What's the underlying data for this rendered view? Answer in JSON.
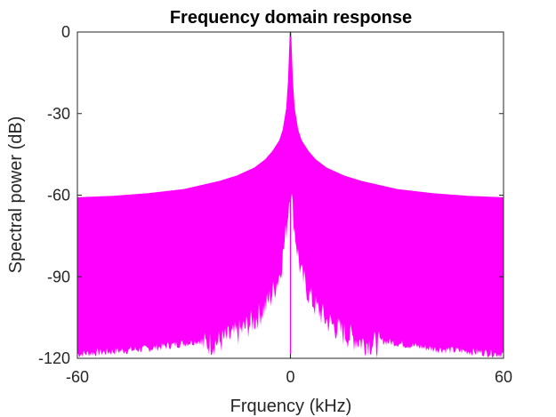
{
  "chart_data": {
    "type": "line",
    "title": "Frequency domain response",
    "xlabel": "Frquency (kHz)",
    "ylabel": "Spectral power (dB)",
    "xlim": [
      -60,
      60
    ],
    "ylim": [
      -120,
      0
    ],
    "xticks": [
      {
        "value": -60,
        "label": "-60"
      },
      {
        "value": 0,
        "label": "0"
      },
      {
        "value": 60,
        "label": "60"
      }
    ],
    "yticks": [
      {
        "value": 0,
        "label": "0"
      },
      {
        "value": -30,
        "label": "-30"
      },
      {
        "value": -60,
        "label": "-60"
      },
      {
        "value": -90,
        "label": "-90"
      },
      {
        "value": -120,
        "label": "-120"
      }
    ],
    "grid": false,
    "color": "#ff00ff",
    "series": [
      {
        "kind": "upper-envelope",
        "x": [
          -60,
          -50,
          -40,
          -30,
          -20,
          -15,
          -10,
          -7,
          -5,
          -3,
          -2,
          -1,
          -0.5,
          0,
          0.5,
          1,
          2,
          3,
          5,
          7,
          10,
          15,
          20,
          30,
          40,
          50,
          60
        ],
        "values": [
          -61,
          -60.5,
          -59.5,
          -58,
          -55,
          -53,
          -50,
          -47,
          -44,
          -40,
          -36,
          -28,
          -18,
          0,
          -18,
          -28,
          -36,
          -40,
          -44,
          -47,
          -50,
          -53,
          -55,
          -58,
          -59.5,
          -60.5,
          -61
        ]
      },
      {
        "kind": "lower-envelope",
        "x": [
          -60,
          -50,
          -40,
          -30,
          -20,
          -15,
          -10,
          -7,
          -5,
          -3,
          -2,
          -1,
          0,
          1,
          2,
          3,
          5,
          7,
          10,
          15,
          20,
          30,
          40,
          50,
          60
        ],
        "values": [
          -119,
          -118,
          -117,
          -115,
          -113,
          -110,
          -105,
          -100,
          -95,
          -88,
          -80,
          -70,
          -55,
          -70,
          -80,
          -88,
          -95,
          -100,
          -105,
          -110,
          -113,
          -115,
          -117,
          -118,
          -119
        ]
      }
    ]
  }
}
